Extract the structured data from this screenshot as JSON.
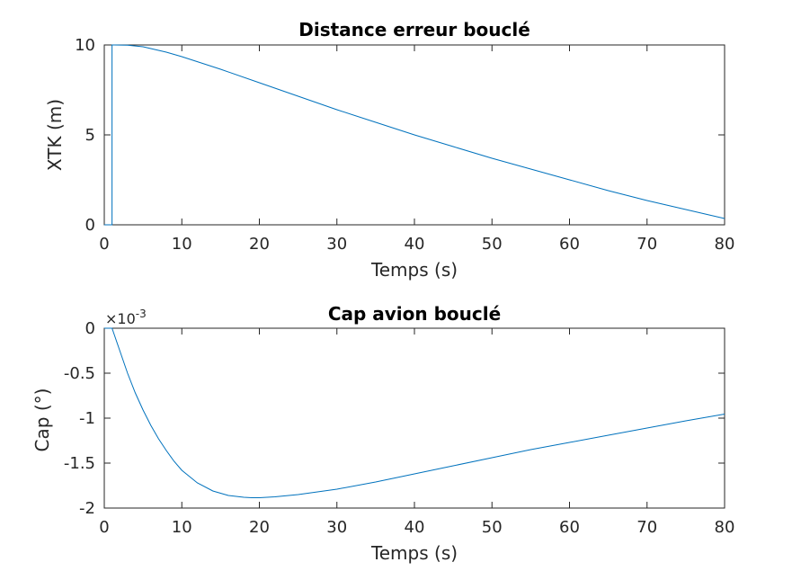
{
  "chart_data": [
    {
      "type": "line",
      "title": "Distance erreur bouclé",
      "xlabel": "Temps (s)",
      "ylabel": "XTK (m)",
      "xlim": [
        0,
        80
      ],
      "ylim": [
        0,
        10
      ],
      "xticks": [
        "0",
        "10",
        "20",
        "30",
        "40",
        "50",
        "60",
        "70",
        "80"
      ],
      "yticks": [
        "0",
        "5",
        "10"
      ],
      "grid": false,
      "color": "#0072BD",
      "series": [
        {
          "x": [
            0,
            1,
            1,
            1.2,
            3,
            5,
            8,
            10,
            15,
            20,
            25,
            30,
            35,
            40,
            45,
            50,
            55,
            60,
            65,
            70,
            75,
            80
          ],
          "y": [
            0,
            0,
            10,
            10.0,
            9.99,
            9.9,
            9.6,
            9.35,
            8.65,
            7.9,
            7.15,
            6.4,
            5.7,
            5.0,
            4.35,
            3.7,
            3.1,
            2.5,
            1.9,
            1.35,
            0.85,
            0.35
          ]
        }
      ]
    },
    {
      "type": "line",
      "title": "Cap avion bouclé",
      "xlabel": "Temps (s)",
      "ylabel": "Cap (°)",
      "multiplier": "×10",
      "multiplier_exponent": "-3",
      "xlim": [
        0,
        80
      ],
      "ylim": [
        -2,
        0
      ],
      "xticks": [
        "0",
        "10",
        "20",
        "30",
        "40",
        "50",
        "60",
        "70",
        "80"
      ],
      "yticks": [
        "-2",
        "-1.5",
        "-1",
        "-0.5",
        "0"
      ],
      "grid": false,
      "color": "#0072BD",
      "series": [
        {
          "x": [
            0,
            1,
            2,
            3,
            4,
            5,
            6,
            7,
            8,
            9,
            10,
            12,
            14,
            16,
            18,
            19,
            20,
            22,
            25,
            30,
            35,
            40,
            45,
            50,
            55,
            60,
            65,
            70,
            75,
            80
          ],
          "y": [
            0,
            0,
            -0.25,
            -0.5,
            -0.72,
            -0.91,
            -1.08,
            -1.23,
            -1.36,
            -1.48,
            -1.58,
            -1.72,
            -1.81,
            -1.86,
            -1.88,
            -1.885,
            -1.885,
            -1.875,
            -1.85,
            -1.79,
            -1.71,
            -1.62,
            -1.53,
            -1.44,
            -1.35,
            -1.27,
            -1.19,
            -1.11,
            -1.03,
            -0.955
          ]
        }
      ]
    }
  ]
}
